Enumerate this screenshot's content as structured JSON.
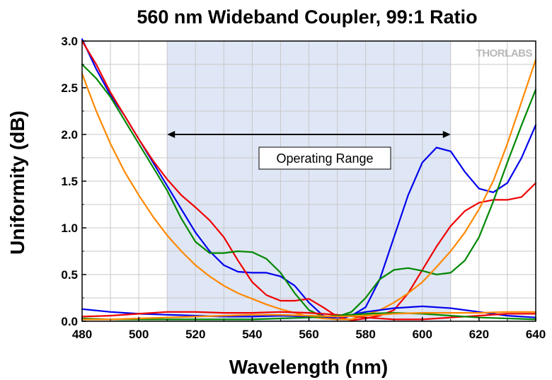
{
  "chart_data": {
    "type": "line",
    "title": "560 nm Wideband Coupler, 99:1 Ratio",
    "xlabel": "Wavelength (nm)",
    "ylabel": "Uniformity (dB)",
    "xlim": [
      480,
      640
    ],
    "ylim": [
      0,
      3.0
    ],
    "xticks": [
      480,
      500,
      520,
      540,
      560,
      580,
      600,
      620,
      640
    ],
    "xtick_labels": [
      "480",
      "500",
      "520",
      "540",
      "560",
      "580",
      "600",
      "620",
      "640"
    ],
    "yticks": [
      0,
      0.5,
      1.0,
      1.5,
      2.0,
      2.5,
      3.0
    ],
    "ytick_labels": [
      "0.0",
      "0.5",
      "1.0",
      "1.5",
      "2.0",
      "2.5",
      "3.0"
    ],
    "grid": true,
    "shaded_region": {
      "x": [
        510,
        610
      ],
      "color": "#dfe6f5"
    },
    "annotation": {
      "text": "Operating Range",
      "x_from": 510,
      "x_to": 610,
      "y": 2.0
    },
    "watermark": "THORLABS",
    "series": [
      {
        "name": "blue-upper",
        "color": "#0000ee",
        "x": [
          480,
          485,
          490,
          495,
          500,
          505,
          510,
          515,
          520,
          525,
          530,
          535,
          540,
          545,
          550,
          555,
          560,
          565,
          570,
          575,
          580,
          585,
          590,
          595,
          600,
          605,
          610,
          615,
          620,
          625,
          630,
          635,
          640
        ],
        "y": [
          3.02,
          2.7,
          2.42,
          2.2,
          1.95,
          1.7,
          1.45,
          1.2,
          0.95,
          0.75,
          0.6,
          0.53,
          0.52,
          0.52,
          0.48,
          0.38,
          0.2,
          0.06,
          0.02,
          0.06,
          0.15,
          0.45,
          0.9,
          1.35,
          1.7,
          1.86,
          1.82,
          1.6,
          1.42,
          1.38,
          1.48,
          1.75,
          2.1
        ]
      },
      {
        "name": "red-upper",
        "color": "#ee0000",
        "x": [
          480,
          485,
          490,
          495,
          500,
          505,
          510,
          515,
          520,
          525,
          530,
          535,
          540,
          545,
          550,
          555,
          560,
          565,
          570,
          575,
          580,
          585,
          590,
          595,
          600,
          605,
          610,
          615,
          620,
          625,
          630,
          635,
          640
        ],
        "y": [
          3.0,
          2.75,
          2.45,
          2.2,
          1.95,
          1.72,
          1.52,
          1.35,
          1.22,
          1.08,
          0.9,
          0.65,
          0.42,
          0.28,
          0.22,
          0.22,
          0.24,
          0.15,
          0.05,
          0.01,
          0.03,
          0.06,
          0.12,
          0.3,
          0.55,
          0.8,
          1.02,
          1.18,
          1.27,
          1.3,
          1.3,
          1.33,
          1.48
        ]
      },
      {
        "name": "green-upper",
        "color": "#008800",
        "x": [
          480,
          485,
          490,
          495,
          500,
          505,
          510,
          515,
          520,
          525,
          530,
          535,
          540,
          545,
          550,
          555,
          560,
          565,
          570,
          575,
          580,
          585,
          590,
          595,
          600,
          605,
          610,
          615,
          620,
          625,
          630,
          635,
          640
        ],
        "y": [
          2.75,
          2.6,
          2.4,
          2.15,
          1.9,
          1.65,
          1.4,
          1.1,
          0.85,
          0.73,
          0.73,
          0.75,
          0.74,
          0.67,
          0.52,
          0.3,
          0.12,
          0.05,
          0.05,
          0.1,
          0.25,
          0.45,
          0.55,
          0.57,
          0.54,
          0.5,
          0.52,
          0.65,
          0.9,
          1.28,
          1.7,
          2.1,
          2.48
        ]
      },
      {
        "name": "orange-upper",
        "color": "#ff8800",
        "x": [
          480,
          485,
          490,
          495,
          500,
          505,
          510,
          515,
          520,
          525,
          530,
          535,
          540,
          545,
          550,
          555,
          560,
          565,
          570,
          575,
          580,
          585,
          590,
          595,
          600,
          605,
          610,
          615,
          620,
          625,
          630,
          635,
          640
        ],
        "y": [
          2.65,
          2.25,
          1.9,
          1.6,
          1.35,
          1.12,
          0.92,
          0.75,
          0.6,
          0.48,
          0.38,
          0.3,
          0.24,
          0.18,
          0.13,
          0.09,
          0.05,
          0.03,
          0.02,
          0.02,
          0.07,
          0.12,
          0.2,
          0.3,
          0.42,
          0.58,
          0.75,
          0.95,
          1.2,
          1.5,
          1.9,
          2.35,
          2.8
        ]
      },
      {
        "name": "blue-lower",
        "color": "#0000ee",
        "x": [
          480,
          490,
          500,
          510,
          520,
          530,
          540,
          550,
          560,
          570,
          580,
          590,
          600,
          610,
          620,
          630,
          640
        ],
        "y": [
          0.13,
          0.1,
          0.08,
          0.07,
          0.06,
          0.05,
          0.05,
          0.06,
          0.05,
          0.04,
          0.1,
          0.14,
          0.16,
          0.14,
          0.1,
          0.06,
          0.04
        ]
      },
      {
        "name": "red-lower",
        "color": "#ee0000",
        "x": [
          480,
          490,
          500,
          510,
          520,
          530,
          540,
          550,
          560,
          570,
          580,
          590,
          600,
          610,
          620,
          630,
          640
        ],
        "y": [
          0.05,
          0.06,
          0.08,
          0.1,
          0.1,
          0.09,
          0.09,
          0.1,
          0.09,
          0.07,
          0.04,
          0.02,
          0.02,
          0.04,
          0.06,
          0.08,
          0.08
        ]
      },
      {
        "name": "green-lower",
        "color": "#008800",
        "x": [
          480,
          490,
          500,
          510,
          520,
          530,
          540,
          550,
          560,
          570,
          580,
          590,
          600,
          610,
          620,
          630,
          640
        ],
        "y": [
          0.03,
          0.02,
          0.02,
          0.02,
          0.02,
          0.02,
          0.02,
          0.03,
          0.04,
          0.06,
          0.08,
          0.09,
          0.08,
          0.06,
          0.04,
          0.03,
          0.02
        ]
      },
      {
        "name": "orange-lower",
        "color": "#ff8800",
        "x": [
          480,
          490,
          500,
          510,
          520,
          530,
          540,
          550,
          560,
          570,
          580,
          590,
          600,
          610,
          620,
          630,
          640
        ],
        "y": [
          0.02,
          0.02,
          0.03,
          0.04,
          0.05,
          0.06,
          0.07,
          0.07,
          0.06,
          0.05,
          0.06,
          0.08,
          0.09,
          0.09,
          0.09,
          0.1,
          0.1
        ]
      }
    ]
  }
}
